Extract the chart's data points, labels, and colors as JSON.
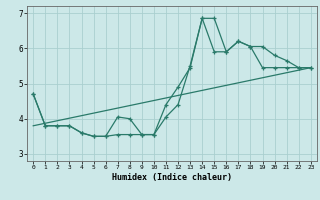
{
  "xlabel": "Humidex (Indice chaleur)",
  "bg_color": "#cce8e8",
  "grid_color": "#aacfcf",
  "line_color": "#2a7a6a",
  "xlim": [
    -0.5,
    23.5
  ],
  "ylim": [
    2.8,
    7.2
  ],
  "yticks": [
    3,
    4,
    5,
    6,
    7
  ],
  "xticks": [
    0,
    1,
    2,
    3,
    4,
    5,
    6,
    7,
    8,
    9,
    10,
    11,
    12,
    13,
    14,
    15,
    16,
    17,
    18,
    19,
    20,
    21,
    22,
    23
  ],
  "line1_x": [
    0,
    1,
    2,
    3,
    4,
    5,
    6,
    7,
    8,
    9,
    10,
    11,
    12,
    13,
    14,
    15,
    16,
    17,
    18,
    19,
    20,
    21,
    22,
    23
  ],
  "line1_y": [
    4.7,
    3.8,
    3.8,
    3.8,
    3.6,
    3.5,
    3.5,
    4.05,
    4.0,
    3.55,
    3.55,
    4.05,
    4.4,
    5.5,
    6.85,
    6.85,
    5.9,
    6.2,
    6.05,
    6.05,
    5.8,
    5.65,
    5.45,
    5.45
  ],
  "line2_x": [
    0,
    1,
    2,
    3,
    4,
    5,
    6,
    7,
    8,
    9,
    10,
    11,
    12,
    13,
    14,
    15,
    16,
    17,
    18,
    19,
    20,
    21,
    22,
    23
  ],
  "line2_y": [
    4.7,
    3.8,
    3.8,
    3.8,
    3.6,
    3.5,
    3.5,
    3.55,
    3.55,
    3.55,
    3.55,
    4.4,
    4.9,
    5.45,
    6.85,
    5.9,
    5.9,
    6.2,
    6.05,
    5.45,
    5.45,
    5.45,
    5.45,
    5.45
  ],
  "line3_x": [
    0,
    23
  ],
  "line3_y": [
    3.8,
    5.45
  ]
}
